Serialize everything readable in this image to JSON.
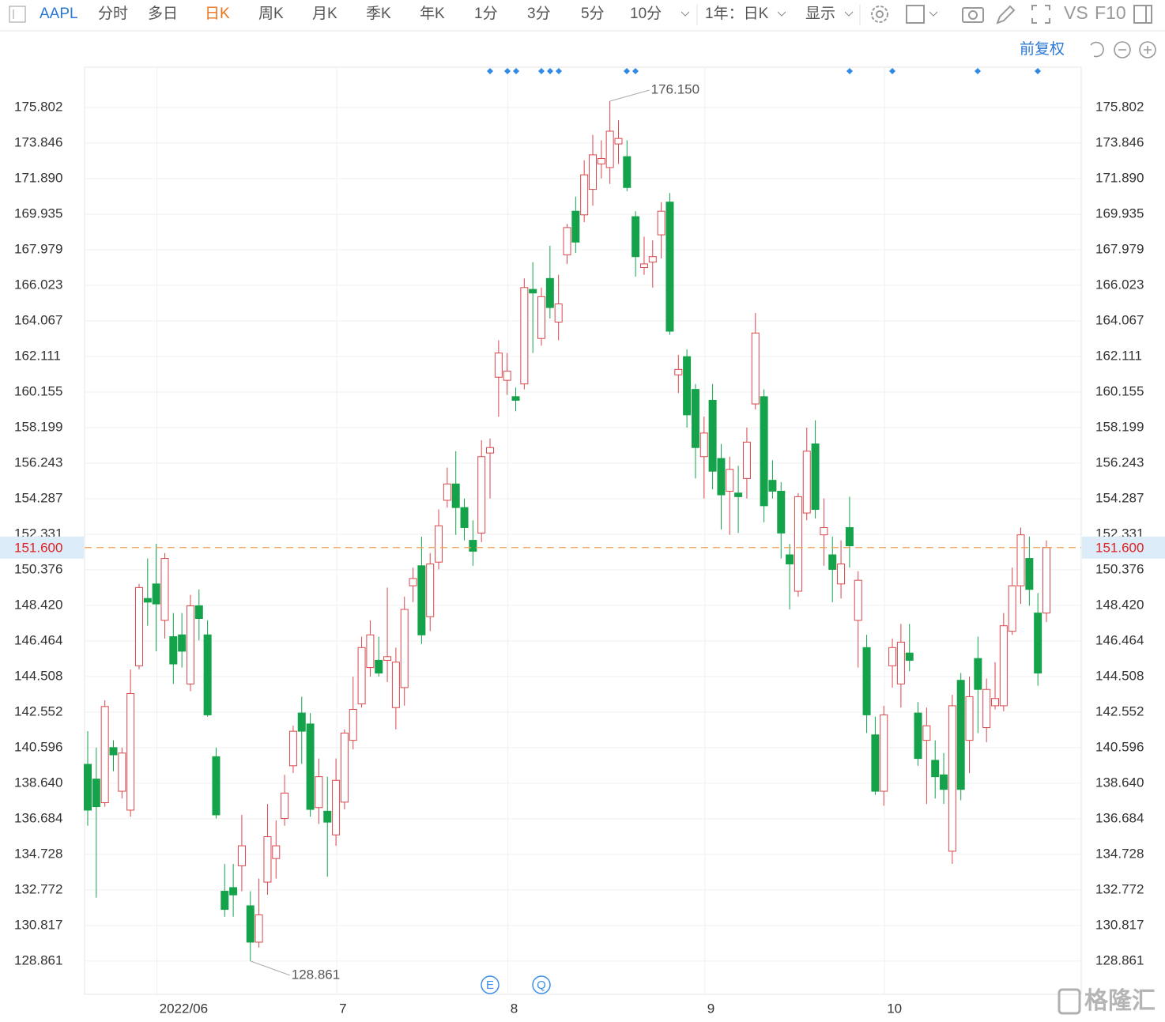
{
  "toolbar": {
    "symbol": "AAPL",
    "periods": [
      "分时",
      "多日",
      "日K",
      "周K",
      "月K",
      "季K",
      "年K",
      "1分",
      "3分",
      "5分"
    ],
    "more": "10分",
    "range": "1年：日K",
    "display": "显示",
    "compare": "VS",
    "f10": "F10"
  },
  "adjust": "前复权",
  "watermark": "格隆汇",
  "event_icons": [
    "E",
    "Q"
  ],
  "chart_data": {
    "type": "candlestick",
    "categories": [
      null,
      null,
      null,
      null,
      null,
      null,
      null,
      null,
      "2022/06",
      null,
      null,
      null,
      null,
      null,
      null,
      null,
      null,
      null,
      null,
      null,
      null,
      null,
      null,
      null,
      null,
      null,
      null,
      null,
      null,
      "7",
      null,
      null,
      null,
      null,
      null,
      null,
      null,
      null,
      null,
      null,
      null,
      null,
      null,
      null,
      null,
      null,
      null,
      null,
      null,
      "8",
      null,
      null,
      null,
      null,
      null,
      null,
      null,
      null,
      null,
      null,
      null,
      null,
      null,
      null,
      null,
      null,
      null,
      null,
      null,
      null,
      null,
      null,
      "9",
      null,
      null,
      null,
      null,
      null,
      null,
      null,
      null,
      null,
      null,
      null,
      null,
      null,
      null,
      null,
      null,
      null,
      null,
      null,
      null,
      "10",
      null,
      null,
      null,
      null,
      null,
      null,
      null,
      null,
      null,
      null,
      null,
      null,
      null,
      null,
      null,
      null,
      null,
      null,
      null
    ],
    "open": [
      139.68,
      138.87,
      137.57,
      140.6,
      138.2,
      137.16,
      145.1,
      148.8,
      149.6,
      147.6,
      146.7,
      146.8,
      144.1,
      148.4,
      146.8,
      140.1,
      132.7,
      132.9,
      134.1,
      131.9,
      129.9,
      133.2,
      134.5,
      136.7,
      139.6,
      142.5,
      141.9,
      137.3,
      137.1,
      135.8,
      137.6,
      141.0,
      143.0,
      145.0,
      145.4,
      145.4,
      142.8,
      143.9,
      149.5,
      150.6,
      147.8,
      150.8,
      154.2,
      155.1,
      153.8,
      152.0,
      152.4,
      156.8,
      160.97,
      160.8,
      159.9,
      160.6,
      165.8,
      163.1,
      166.4,
      164.0,
      167.7,
      170.1,
      169.9,
      171.3,
      172.7,
      172.5,
      173.8,
      173.1,
      169.8,
      167.0,
      167.3,
      168.8,
      170.6,
      161.1,
      162.1,
      160.3,
      156.6,
      159.7,
      156.5,
      154.7,
      154.6,
      155.4,
      159.5,
      159.9,
      155.3,
      154.7,
      151.2,
      149.2,
      153.5,
      157.3,
      152.3,
      151.2,
      149.6,
      152.7,
      147.6,
      146.1,
      141.3,
      138.2,
      145.1,
      144.1,
      145.8,
      142.5,
      141.0,
      139.9,
      139.1,
      134.9,
      144.3,
      141.0,
      145.5,
      141.7,
      142.9,
      142.9,
      147.0,
      149.5,
      151.0,
      148.0,
      148.0
    ],
    "high": [
      141.5,
      140.6,
      143.2,
      141.0,
      140.6,
      144.9,
      149.6,
      151.0,
      151.8,
      151.3,
      148.0,
      148.0,
      149.0,
      149.3,
      147.6,
      140.6,
      134.2,
      134.2,
      136.9,
      132.7,
      133.4,
      137.5,
      136.6,
      139.1,
      141.8,
      143.4,
      142.5,
      140.0,
      139.0,
      140.0,
      141.6,
      144.5,
      146.7,
      147.6,
      146.7,
      149.4,
      146.1,
      148.9,
      150.5,
      152.2,
      151.3,
      153.7,
      156.0,
      156.9,
      154.3,
      153.1,
      157.5,
      157.6,
      163.0,
      162.3,
      160.4,
      166.4,
      167.3,
      165.9,
      168.2,
      166.6,
      169.4,
      170.9,
      172.9,
      174.3,
      174.0,
      176.15,
      175.1,
      174.0,
      170.1,
      168.7,
      168.5,
      170.6,
      171.1,
      162.2,
      162.5,
      160.6,
      158.8,
      160.6,
      157.3,
      156.6,
      156.1,
      158.2,
      164.5,
      160.3,
      156.4,
      155.2,
      151.8,
      154.6,
      158.2,
      158.6,
      154.3,
      152.2,
      152.0,
      154.4,
      150.3,
      146.8,
      142.3,
      142.9,
      146.6,
      147.4,
      147.4,
      143.1,
      142.8,
      141.0,
      140.3,
      143.5,
      144.7,
      144.5,
      146.7,
      144.4,
      145.3,
      148.0,
      150.5,
      152.7,
      152.2,
      149.1,
      152.0
    ],
    "low": [
      136.3,
      132.35,
      137.35,
      139.3,
      137.8,
      136.8,
      144.9,
      147.3,
      145.9,
      146.6,
      144.1,
      145.0,
      143.7,
      146.5,
      142.3,
      136.7,
      131.3,
      131.3,
      132.7,
      128.861,
      129.6,
      132.5,
      133.4,
      136.3,
      139.2,
      139.7,
      136.8,
      136.4,
      133.5,
      135.2,
      137.2,
      140.5,
      142.8,
      144.5,
      144.5,
      144.2,
      141.6,
      142.9,
      148.6,
      146.3,
      147.0,
      150.4,
      153.8,
      152.3,
      152.0,
      150.6,
      151.9,
      154.3,
      158.8,
      160.0,
      159.1,
      160.3,
      162.3,
      162.7,
      164.2,
      163.0,
      167.2,
      167.8,
      169.5,
      170.4,
      171.9,
      171.6,
      172.7,
      171.2,
      166.5,
      166.6,
      165.9,
      167.5,
      163.3,
      160.1,
      158.2,
      155.4,
      154.3,
      154.8,
      152.6,
      152.3,
      152.4,
      154.3,
      159.2,
      153.0,
      154.3,
      151.0,
      148.2,
      148.9,
      153.1,
      153.2,
      150.6,
      148.6,
      148.8,
      150.5,
      145.0,
      141.4,
      138.0,
      137.4,
      143.9,
      142.8,
      144.8,
      139.6,
      137.5,
      137.8,
      137.5,
      134.2,
      137.7,
      139.2,
      141.4,
      140.9,
      142.7,
      142.6,
      146.8,
      148.5,
      148.4,
      144.0,
      147.5
    ],
    "close": [
      137.16,
      137.35,
      142.86,
      140.2,
      140.3,
      143.57,
      149.4,
      148.6,
      148.5,
      151.0,
      145.2,
      145.9,
      148.4,
      147.7,
      142.4,
      136.9,
      131.7,
      132.5,
      135.2,
      129.9,
      131.4,
      135.7,
      135.2,
      138.1,
      141.5,
      141.5,
      137.2,
      139.0,
      136.5,
      138.8,
      141.4,
      142.7,
      146.1,
      146.8,
      144.7,
      145.6,
      145.3,
      148.2,
      149.9,
      146.8,
      150.7,
      152.8,
      155.1,
      153.8,
      152.7,
      151.4,
      156.6,
      157.1,
      162.3,
      161.3,
      159.7,
      165.9,
      165.6,
      165.4,
      164.8,
      165.0,
      169.2,
      168.4,
      172.1,
      173.2,
      173.0,
      174.5,
      174.1,
      171.4,
      167.6,
      167.2,
      167.6,
      170.1,
      163.5,
      161.4,
      158.9,
      157.1,
      157.9,
      155.8,
      154.5,
      155.9,
      154.4,
      157.4,
      163.4,
      153.9,
      154.7,
      152.4,
      150.7,
      154.4,
      156.9,
      153.7,
      152.7,
      150.4,
      150.7,
      151.7,
      149.8,
      142.4,
      138.2,
      142.4,
      146.1,
      146.4,
      145.4,
      140.0,
      141.8,
      139.0,
      138.3,
      142.9,
      138.3,
      143.4,
      143.8,
      143.8,
      143.3,
      147.3,
      149.5,
      152.3,
      149.3,
      144.7,
      151.6
    ],
    "ylim": [
      127.03,
      178.02
    ],
    "yticks": [
      128.861,
      130.817,
      132.772,
      134.728,
      136.684,
      {
        "value": 138.64,
        "label": "138.640"
      },
      140.596,
      142.552,
      144.508,
      146.464,
      {
        "value": 148.42,
        "label": "148.420"
      },
      150.376,
      152.331,
      154.287,
      156.243,
      158.199,
      160.155,
      162.111,
      164.067,
      166.023,
      167.979,
      169.935,
      {
        "value": 171.89,
        "label": "171.890"
      },
      173.846,
      175.802
    ],
    "grid": true,
    "up_color": "#d9474c",
    "down_color": "#14a34a",
    "last_price": {
      "value": 151.6,
      "label": "151.600"
    },
    "annotations": [
      {
        "value": 176.15,
        "label": "176.150"
      },
      {
        "value": 128.861,
        "label": "128.861"
      }
    ]
  }
}
